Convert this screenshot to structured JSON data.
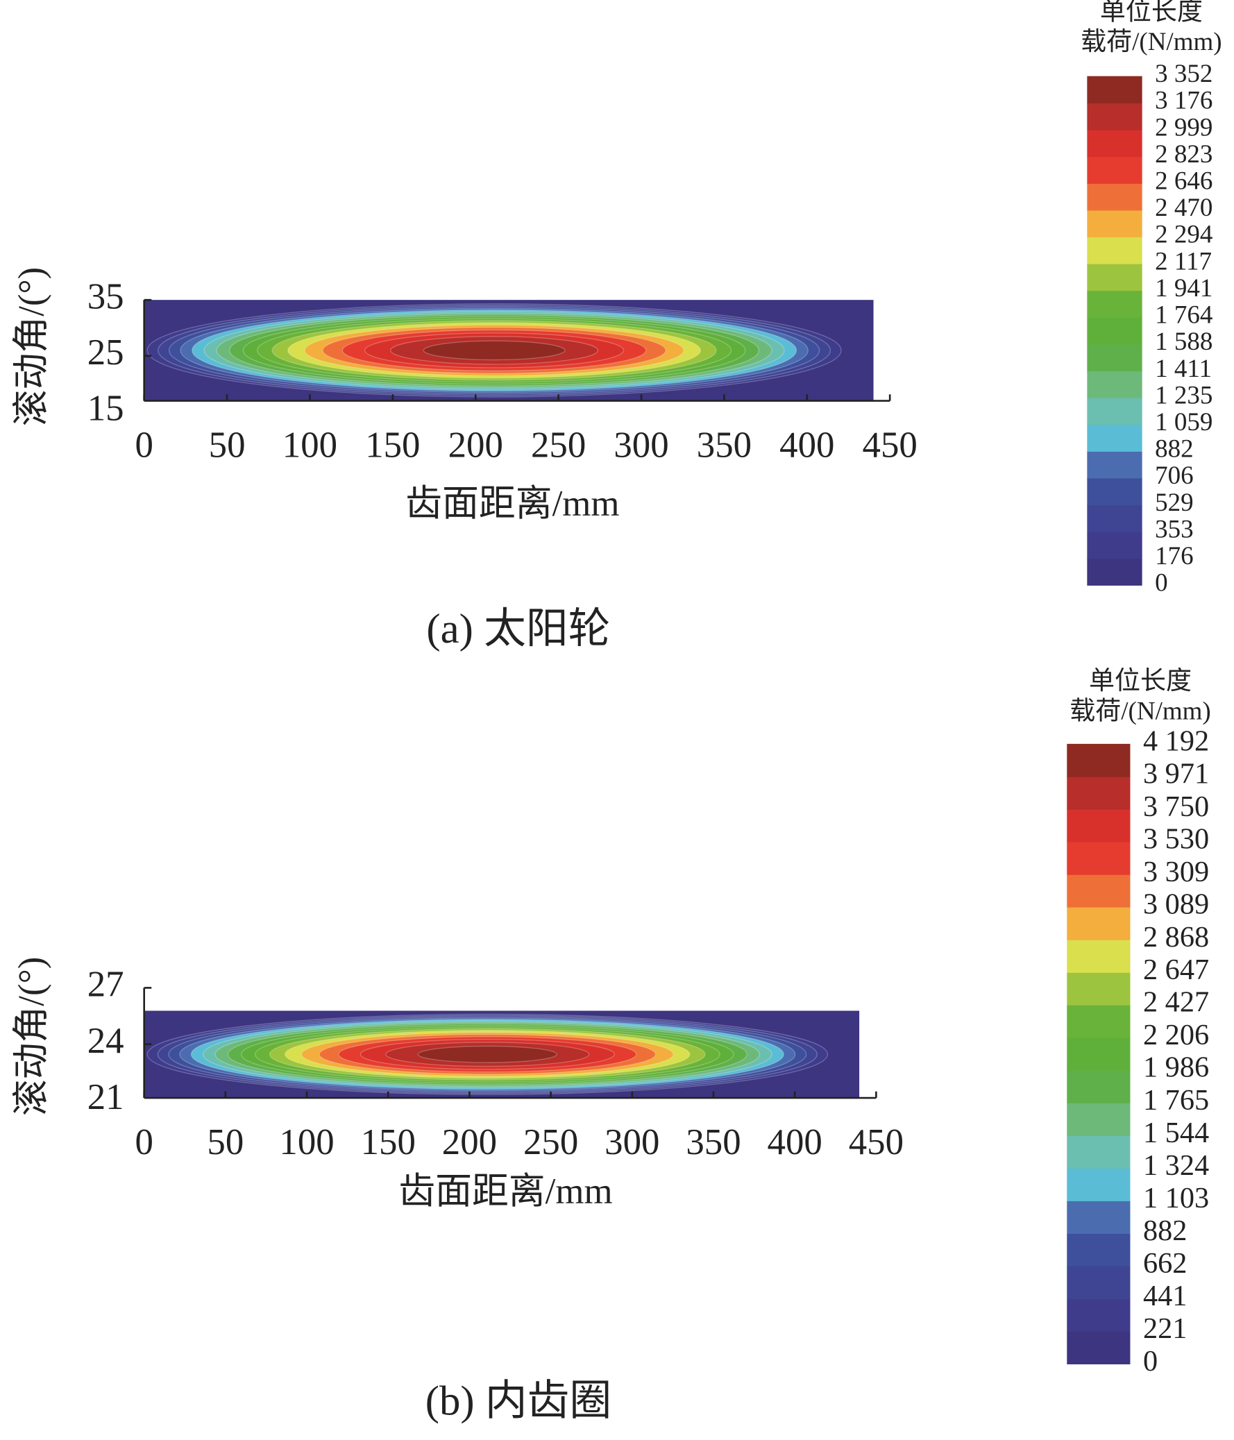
{
  "chart_data": [
    {
      "type": "contour",
      "title": "(a)  太阳轮",
      "xlabel": "齿面距离/mm",
      "ylabel": "滚动角/(°)",
      "xlim": [
        0,
        450
      ],
      "xticks": [
        0,
        50,
        100,
        150,
        200,
        250,
        300,
        350,
        400,
        450
      ],
      "ylim": [
        15,
        35
      ],
      "yticks": [
        15,
        25,
        35
      ],
      "colorbar_title": [
        "单位长度",
        "载荷/(N/mm)"
      ],
      "levels": [
        0,
        176,
        353,
        529,
        706,
        882,
        {
          "value": 1059,
          "label": "1 059"
        },
        {
          "value": 1235,
          "label": "1 235"
        },
        {
          "value": 1411,
          "label": "1 411"
        },
        {
          "value": 1588,
          "label": "1 588"
        },
        {
          "value": 1764,
          "label": "1 764"
        },
        {
          "value": 1941,
          "label": "1 941"
        },
        {
          "value": 2117,
          "label": "2 117"
        },
        {
          "value": 2294,
          "label": "2 294"
        },
        {
          "value": 2470,
          "label": "2 470"
        },
        {
          "value": 2646,
          "label": "2 646"
        },
        {
          "value": 2823,
          "label": "2 823"
        },
        {
          "value": 2999,
          "label": "2 999"
        },
        {
          "value": 3176,
          "label": "3 176"
        },
        {
          "value": 3352,
          "label": "3 352"
        }
      ],
      "colors": [
        "#3d3580",
        "#3f3c8c",
        "#3f4593",
        "#3e509c",
        "#4b6db0",
        "#5bbcd6",
        "#6bbfb0",
        "#6db97a",
        "#5fb04a",
        "#5fb03a",
        "#6ab33a",
        "#9dc43e",
        "#d9df4d",
        "#f3ae3e",
        "#ee7038",
        "#e53c2f",
        "#d8312b",
        "#b72e2a",
        "#8e2a22"
      ]
    },
    {
      "type": "contour",
      "title": "(b)  内齿圈",
      "xlabel": "齿面距离/mm",
      "ylabel": "滚动角/(°)",
      "xlim": [
        0,
        450
      ],
      "xticks": [
        0,
        50,
        100,
        150,
        200,
        250,
        300,
        350,
        400,
        450
      ],
      "ylim": [
        21,
        27
      ],
      "yticks": [
        21,
        24,
        27
      ],
      "colorbar_title": [
        "单位长度",
        "载荷/(N/mm)"
      ],
      "levels": [
        0,
        221,
        441,
        662,
        882,
        {
          "value": 1103,
          "label": "1 103"
        },
        {
          "value": 1324,
          "label": "1 324"
        },
        {
          "value": 1544,
          "label": "1 544"
        },
        {
          "value": 1765,
          "label": "1 765"
        },
        {
          "value": 1986,
          "label": "1 986"
        },
        {
          "value": 2206,
          "label": "2 206"
        },
        {
          "value": 2427,
          "label": "2 427"
        },
        {
          "value": 2647,
          "label": "2 647"
        },
        {
          "value": 2868,
          "label": "2 868"
        },
        {
          "value": 3089,
          "label": "3 089"
        },
        {
          "value": 3309,
          "label": "3 309"
        },
        {
          "value": 3530,
          "label": "3 530"
        },
        {
          "value": 3750,
          "label": "3 750"
        },
        {
          "value": 3971,
          "label": "3 971"
        },
        {
          "value": 4192,
          "label": "4 192"
        }
      ],
      "colors": [
        "#3d3580",
        "#3f3c8c",
        "#3f4593",
        "#3e509c",
        "#4b6db0",
        "#5bbcd6",
        "#6bbfb0",
        "#6db97a",
        "#5fb04a",
        "#5fb03a",
        "#6ab33a",
        "#9dc43e",
        "#d9df4d",
        "#f3ae3e",
        "#ee7038",
        "#e53c2f",
        "#d8312b",
        "#b72e2a",
        "#8e2a22"
      ]
    }
  ]
}
